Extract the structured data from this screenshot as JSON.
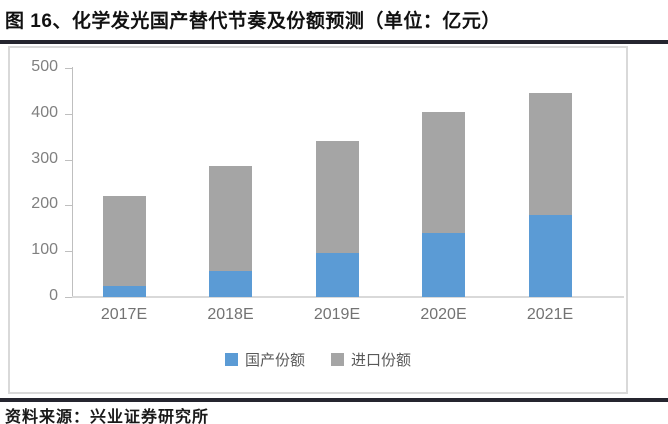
{
  "title": "图 16、化学发光国产替代节奏及份额预测（单位：亿元）",
  "source": "资料来源：兴业证券研究所",
  "colors": {
    "domestic_blue": "#5B9BD5",
    "import_gray": "#A5A5A5",
    "axis_line": "#BFBFBF",
    "tick_label": "#808080",
    "divider_dark": "#25252F",
    "box_border": "#D9D9D9"
  },
  "chart_data": {
    "type": "bar",
    "stacked": true,
    "title": "化学发光国产替代节奏及份额预测",
    "unit": "亿元",
    "categories": [
      "2017E",
      "2018E",
      "2019E",
      "2020E",
      "2021E"
    ],
    "series": [
      {
        "name": "国产份额",
        "color": "#5B9BD5",
        "values": [
          25,
          57,
          96,
          140,
          178
        ]
      },
      {
        "name": "进口份额",
        "color": "#A5A5A5",
        "values": [
          195,
          228,
          245,
          265,
          267
        ]
      }
    ],
    "totals": [
      220,
      285,
      341,
      405,
      445
    ],
    "yticks": [
      0,
      100,
      200,
      300,
      400,
      500
    ],
    "ylim": [
      0,
      500
    ],
    "xlabel": "",
    "ylabel": "",
    "grid": false,
    "legend_position": "bottom"
  }
}
